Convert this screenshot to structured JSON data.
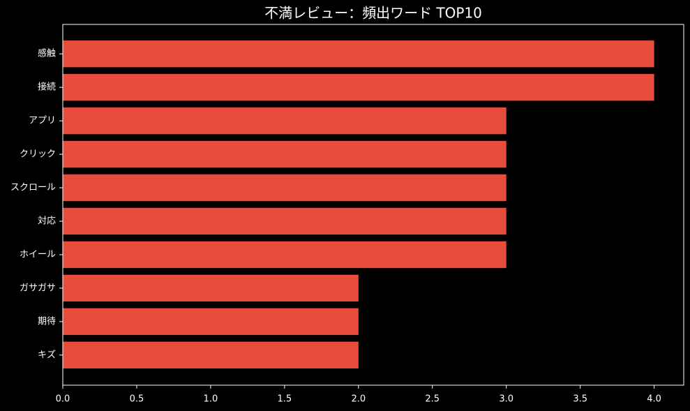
{
  "chart_data": {
    "type": "barh",
    "title": "不満レビュー：頻出ワード TOP10",
    "categories": [
      "感触",
      "接続",
      "アプリ",
      "クリック",
      "スクロール",
      "対応",
      "ホイール",
      "ガサガサ",
      "期待",
      "キズ"
    ],
    "values": [
      4,
      4,
      3,
      3,
      3,
      3,
      3,
      2,
      2,
      2
    ],
    "color": "#e74c3c",
    "xlim": [
      0,
      4.2
    ],
    "xticks": [
      {
        "value": 0,
        "label": "0.0"
      },
      {
        "value": 0.5,
        "label": "0.5"
      },
      {
        "value": 1,
        "label": "1.0"
      },
      {
        "value": 1.5,
        "label": "1.5"
      },
      {
        "value": 2,
        "label": "2.0"
      },
      {
        "value": 2.5,
        "label": "2.5"
      },
      {
        "value": 3,
        "label": "3.0"
      },
      {
        "value": 3.5,
        "label": "3.5"
      },
      {
        "value": 4,
        "label": "4.0"
      }
    ],
    "grid": false
  }
}
